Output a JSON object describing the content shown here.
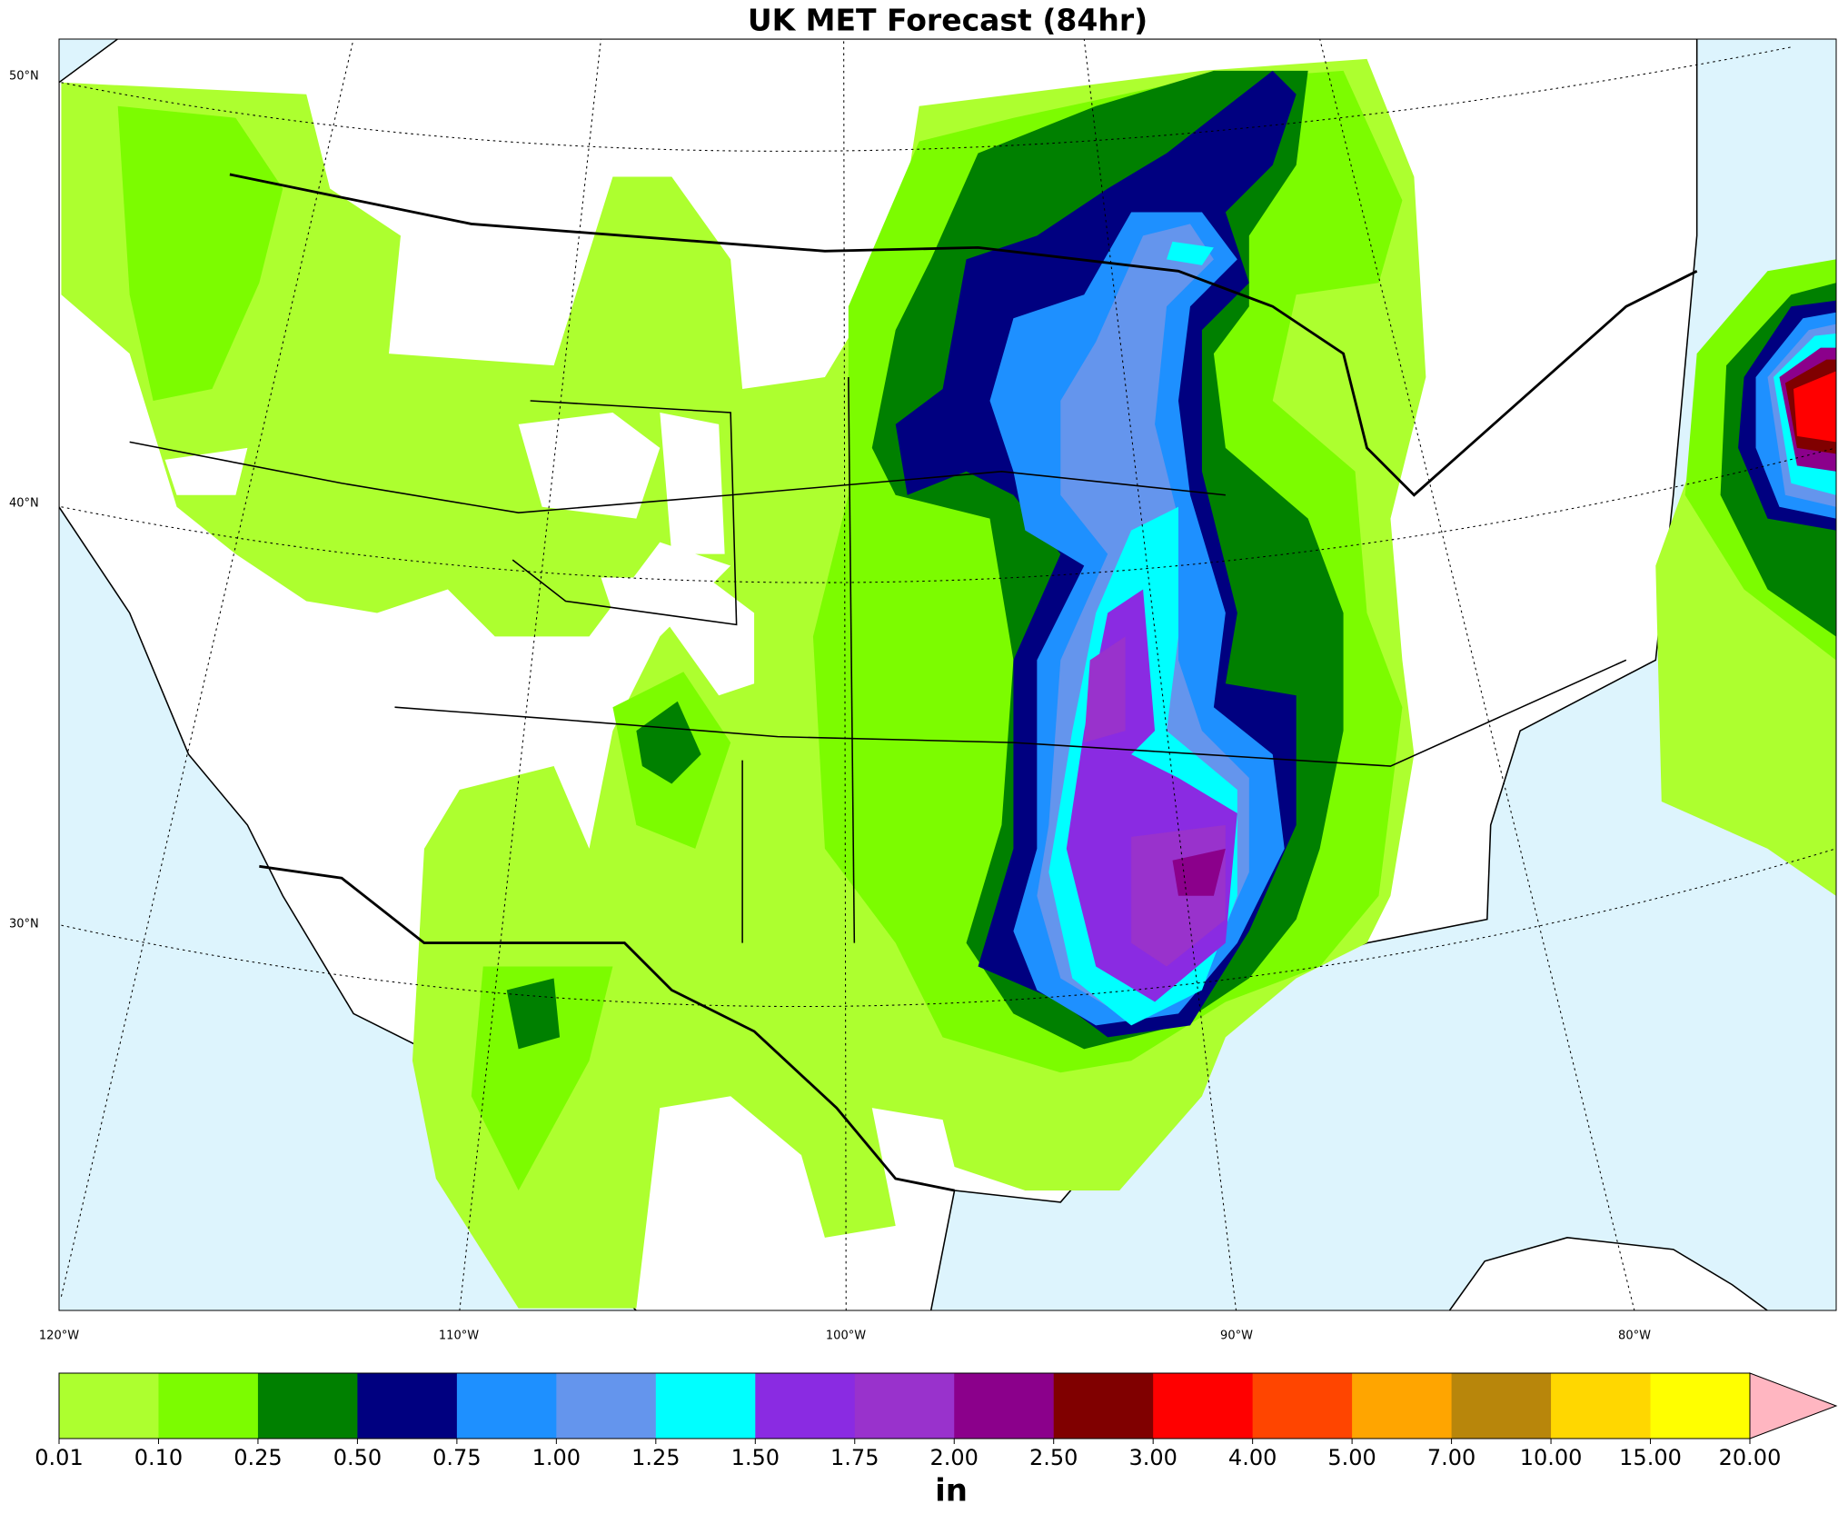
{
  "title": "UK MET Forecast (84hr)",
  "map": {
    "lat_labels": [
      "50°N",
      "40°N",
      "30°N"
    ],
    "lon_labels": [
      "120°W",
      "110°W",
      "100°W",
      "90°W",
      "80°W"
    ]
  },
  "colorbar": {
    "levels": [
      "0.01",
      "0.10",
      "0.25",
      "0.50",
      "0.75",
      "1.00",
      "1.25",
      "1.50",
      "1.75",
      "2.00",
      "2.50",
      "3.00",
      "4.00",
      "5.00",
      "7.00",
      "10.00",
      "15.00",
      "20.00"
    ],
    "colors": [
      "#adff2f",
      "#7cfc00",
      "#008000",
      "#000080",
      "#1e90ff",
      "#6495ed",
      "#00ffff",
      "#8a2be2",
      "#9932cc",
      "#8b008b",
      "#800000",
      "#ff0000",
      "#ff4500",
      "#ffa500",
      "#b8860b",
      "#ffd700",
      "#ffff00"
    ],
    "extend_color": "#ffb6c1",
    "unit": "in"
  }
}
